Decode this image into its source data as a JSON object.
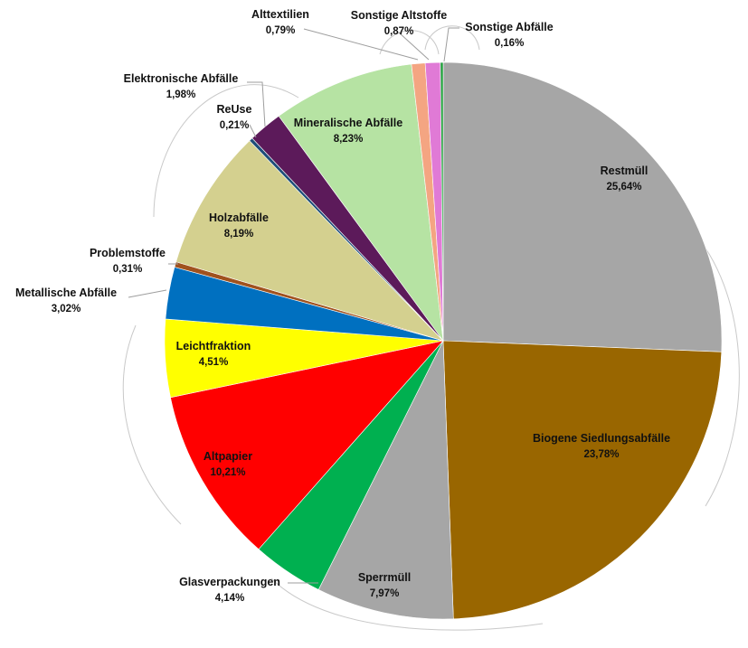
{
  "chart_data": {
    "type": "pie",
    "title": "",
    "legend": "none",
    "start_angle_deg": 0,
    "direction": "clockwise",
    "slices": [
      {
        "label": "Restmüll",
        "value": 25.64,
        "value_label": "25,64%",
        "color": "#a6a6a6"
      },
      {
        "label": "Biogene Siedlungsabfälle",
        "value": 23.78,
        "value_label": "23,78%",
        "color": "#996600"
      },
      {
        "label": "Sperrmüll",
        "value": 7.97,
        "value_label": "7,97%",
        "color": "#a6a6a6"
      },
      {
        "label": "Glasverpackungen",
        "value": 4.14,
        "value_label": "4,14%",
        "color": "#00b050"
      },
      {
        "label": "Altpapier",
        "value": 10.21,
        "value_label": "10,21%",
        "color": "#ff0000"
      },
      {
        "label": "Leichtfraktion",
        "value": 4.51,
        "value_label": "4,51%",
        "color": "#ffff00"
      },
      {
        "label": "Metallische Abfälle",
        "value": 3.02,
        "value_label": "3,02%",
        "color": "#0070c0"
      },
      {
        "label": "Problemstoffe",
        "value": 0.31,
        "value_label": "0,31%",
        "color": "#a0521e"
      },
      {
        "label": "Holzabfälle",
        "value": 8.19,
        "value_label": "8,19%",
        "color": "#d4d08f"
      },
      {
        "label": "ReUse",
        "value": 0.21,
        "value_label": "0,21%",
        "color": "#1f4e79"
      },
      {
        "label": "Elektronische Abfälle",
        "value": 1.98,
        "value_label": "1,98%",
        "color": "#5c1a5a"
      },
      {
        "label": "Mineralische Abfälle",
        "value": 8.23,
        "value_label": "8,23%",
        "color": "#b6e3a3"
      },
      {
        "label": "Alttextilien",
        "value": 0.79,
        "value_label": "0,79%",
        "color": "#f4a582"
      },
      {
        "label": "Sonstige Altstoffe",
        "value": 0.87,
        "value_label": "0,87%",
        "color": "#e07ad6"
      },
      {
        "label": "Sonstige Abfälle",
        "value": 0.16,
        "value_label": "0,16%",
        "color": "#1f9e3a"
      }
    ]
  }
}
